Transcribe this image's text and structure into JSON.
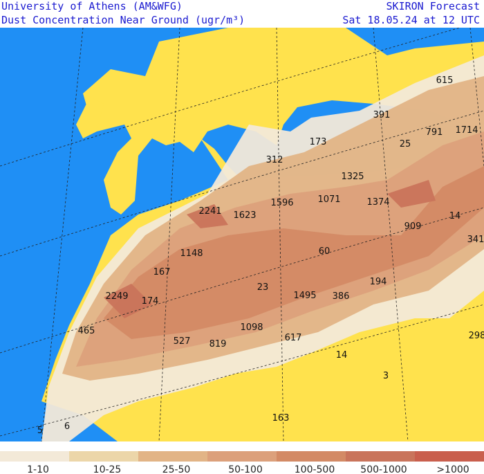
{
  "header": {
    "left_title": "University of Athens (AM&WFG)",
    "left_subtitle": "Dust Concentration Near Ground (ugr/m³)",
    "right_title": "SKIRON Forecast",
    "right_subtitle": "Sat 18.05.24 at 12 UTC"
  },
  "map": {
    "colors": {
      "sea": "#1f8ff5",
      "land": "#ffe24d"
    },
    "labels": [
      "615",
      "391",
      "791",
      "1714",
      "173",
      "25",
      "312",
      "1325",
      "2241",
      "1623",
      "1596",
      "1071",
      "1374",
      "14",
      "909",
      "341",
      "1148",
      "60",
      "167",
      "23",
      "194",
      "2249",
      "174",
      "1495",
      "386",
      "465",
      "1098",
      "617",
      "298",
      "527",
      "819",
      "14",
      "3",
      "163",
      "5",
      "6"
    ]
  },
  "legend": {
    "items": [
      {
        "label": "1-10",
        "color": "#f3e9d8"
      },
      {
        "label": "10-25",
        "color": "#ecd6a9"
      },
      {
        "label": "25-50",
        "color": "#e2b486"
      },
      {
        "label": "50-100",
        "color": "#dca07b"
      },
      {
        "label": "100-500",
        "color": "#d38a65"
      },
      {
        "label": "500-1000",
        "color": "#c9745b"
      },
      {
        "label": ">1000",
        "color": "#c95f4d"
      }
    ]
  }
}
